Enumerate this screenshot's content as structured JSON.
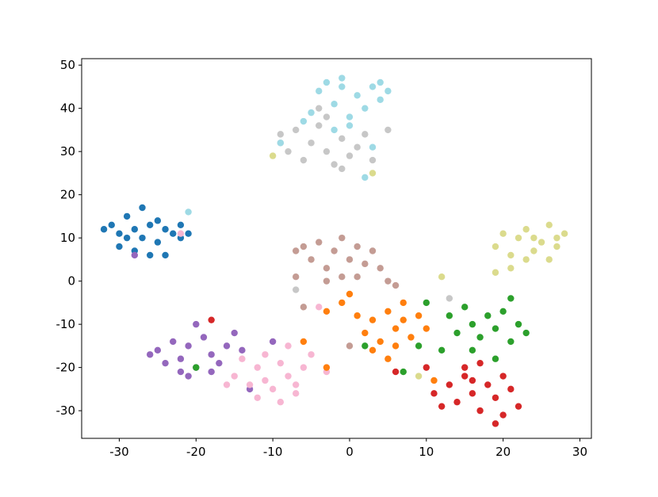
{
  "chart_data": {
    "type": "scatter",
    "xlim": [
      -34.9,
      31.5
    ],
    "ylim": [
      -36.4,
      51.5
    ],
    "xticks": [
      -30,
      -20,
      -10,
      0,
      10,
      20,
      30
    ],
    "yticks": [
      -30,
      -20,
      -10,
      0,
      10,
      20,
      30,
      40,
      50
    ],
    "series": [
      {
        "color": "#1f77b4",
        "x": [
          -31,
          -30,
          -29,
          -28,
          -27,
          -26,
          -25,
          -24,
          -23,
          -22,
          -30,
          -28,
          -27,
          -26,
          -25,
          -29,
          -24,
          -22,
          -21,
          -32
        ],
        "values": [
          13,
          11,
          15,
          12,
          10,
          13,
          9,
          12,
          11,
          10,
          8,
          7,
          17,
          6,
          14,
          10,
          6,
          13,
          11,
          12
        ]
      },
      {
        "color": "#9467bd",
        "x": [
          -25,
          -23,
          -22,
          -21,
          -20,
          -19,
          -18,
          -17,
          -16,
          -22,
          -24,
          -20,
          -15,
          -14,
          -21,
          -18,
          -26,
          -13,
          -10,
          -28
        ],
        "values": [
          -16,
          -14,
          -18,
          -15,
          -20,
          -13,
          -17,
          -19,
          -15,
          -21,
          -19,
          -10,
          -12,
          -16,
          -22,
          -21,
          -17,
          -25,
          -14,
          6
        ]
      },
      {
        "color": "#f7b6d2",
        "x": [
          -15,
          -13,
          -12,
          -11,
          -10,
          -9,
          -8,
          -7,
          -6,
          -12,
          -9,
          -14,
          -5,
          -8,
          -11,
          -16,
          -4,
          -7,
          -3,
          -22
        ],
        "values": [
          -22,
          -24,
          -20,
          -23,
          -25,
          -19,
          -22,
          -24,
          -20,
          -27,
          -28,
          -18,
          -17,
          -15,
          -17,
          -24,
          -6,
          -26,
          -21,
          11
        ]
      },
      {
        "color": "#c49c94",
        "x": [
          -6,
          -5,
          -4,
          -3,
          -2,
          -1,
          0,
          1,
          2,
          3,
          -3,
          -1,
          4,
          5,
          6,
          -7,
          -6,
          0,
          -7,
          1
        ],
        "values": [
          8,
          5,
          9,
          3,
          7,
          10,
          5,
          8,
          4,
          7,
          0,
          1,
          3,
          0,
          -1,
          1,
          -6,
          -15,
          7,
          1
        ]
      },
      {
        "color": "#c7c7c7",
        "x": [
          -9,
          -8,
          -7,
          -6,
          -5,
          -4,
          -3,
          -2,
          -1,
          0,
          1,
          2,
          3,
          -3,
          5,
          -9,
          -1,
          13,
          -7,
          -4
        ],
        "values": [
          34,
          30,
          35,
          28,
          32,
          36,
          30,
          27,
          33,
          29,
          31,
          34,
          28,
          38,
          35,
          32,
          26,
          -4,
          -2,
          40
        ]
      },
      {
        "color": "#9edae5",
        "x": [
          -4,
          -3,
          -2,
          -1,
          0,
          1,
          2,
          3,
          4,
          -5,
          -6,
          -1,
          4,
          -2,
          3,
          2,
          -9,
          0,
          5,
          -21
        ],
        "values": [
          44,
          46,
          41,
          45,
          38,
          43,
          40,
          45,
          42,
          39,
          37,
          47,
          46,
          35,
          31,
          24,
          32,
          36,
          44,
          16
        ]
      },
      {
        "color": "#dbdb8d",
        "x": [
          19,
          20,
          21,
          22,
          23,
          24,
          25,
          26,
          27,
          28,
          23,
          26,
          21,
          19,
          27,
          24,
          3,
          -10,
          12,
          9
        ],
        "values": [
          8,
          11,
          6,
          10,
          12,
          7,
          9,
          13,
          8,
          11,
          5,
          5,
          3,
          2,
          10,
          10,
          25,
          29,
          1,
          -22
        ]
      },
      {
        "color": "#ff7f0e",
        "x": [
          1,
          2,
          3,
          4,
          5,
          6,
          7,
          8,
          3,
          5,
          7,
          9,
          10,
          -1,
          -3,
          -6,
          -3,
          11,
          0,
          6
        ],
        "values": [
          -8,
          -12,
          -9,
          -14,
          -7,
          -11,
          -9,
          -13,
          -16,
          -18,
          -5,
          -8,
          -11,
          -5,
          -7,
          -14,
          -20,
          -23,
          -3,
          -15
        ]
      },
      {
        "color": "#2ca02c",
        "x": [
          13,
          14,
          15,
          16,
          17,
          18,
          19,
          20,
          21,
          22,
          23,
          16,
          19,
          12,
          10,
          9,
          21,
          7,
          2,
          -20
        ],
        "values": [
          -8,
          -12,
          -6,
          -10,
          -13,
          -8,
          -11,
          -7,
          -14,
          -10,
          -12,
          -16,
          -18,
          -16,
          -5,
          -15,
          -4,
          -21,
          -15,
          -20
        ]
      },
      {
        "color": "#d62728",
        "x": [
          13,
          14,
          15,
          16,
          17,
          18,
          19,
          20,
          21,
          22,
          15,
          17,
          12,
          11,
          20,
          10,
          6,
          -18,
          19,
          16
        ],
        "values": [
          -24,
          -28,
          -22,
          -26,
          -30,
          -24,
          -27,
          -31,
          -25,
          -29,
          -20,
          -19,
          -29,
          -26,
          -22,
          -20,
          -21,
          -9,
          -33,
          -23
        ]
      }
    ]
  }
}
